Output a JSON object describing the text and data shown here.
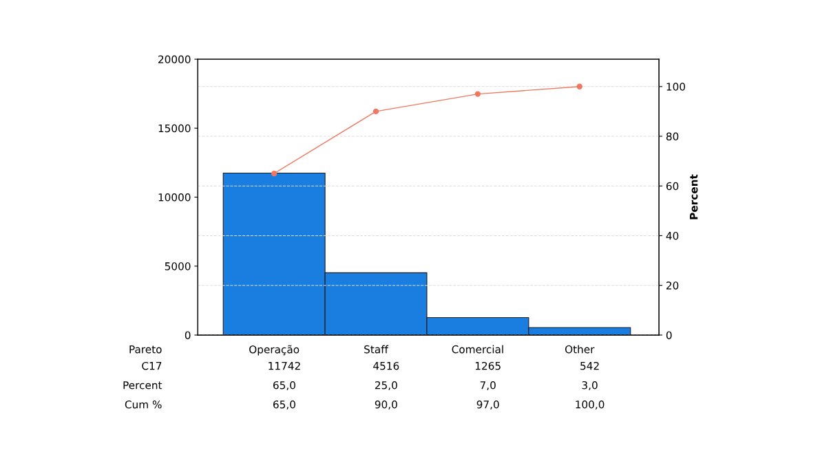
{
  "chart_data": {
    "type": "bar",
    "categories": [
      "Operação",
      "Staff",
      "Comercial",
      "Other"
    ],
    "y2label": "Percent",
    "ylim": [
      0,
      20000
    ],
    "yticks": [
      0,
      5000,
      10000,
      15000,
      20000
    ],
    "y2lim": [
      0,
      111
    ],
    "y2ticks": [
      0,
      20,
      40,
      60,
      80,
      100
    ],
    "grid": "y2",
    "marker": "circle",
    "line_style": "solid",
    "series": [
      {
        "color": "#1a7ee0",
        "values": [
          11742,
          4516,
          1265,
          542
        ],
        "value_labels": [
          "11742",
          "4516",
          "1265",
          "542"
        ]
      },
      {
        "type": "line",
        "axis": "y2",
        "color": "#f07860",
        "values": [
          65,
          90,
          97,
          100
        ],
        "value_labels": [
          "65,0",
          "90,0",
          "97,0",
          "100,0"
        ]
      }
    ],
    "annotations": [
      "Pareto",
      "C17",
      "Percent",
      "Cum %",
      "65,0",
      "25,0",
      "7,0",
      "3,0"
    ]
  }
}
